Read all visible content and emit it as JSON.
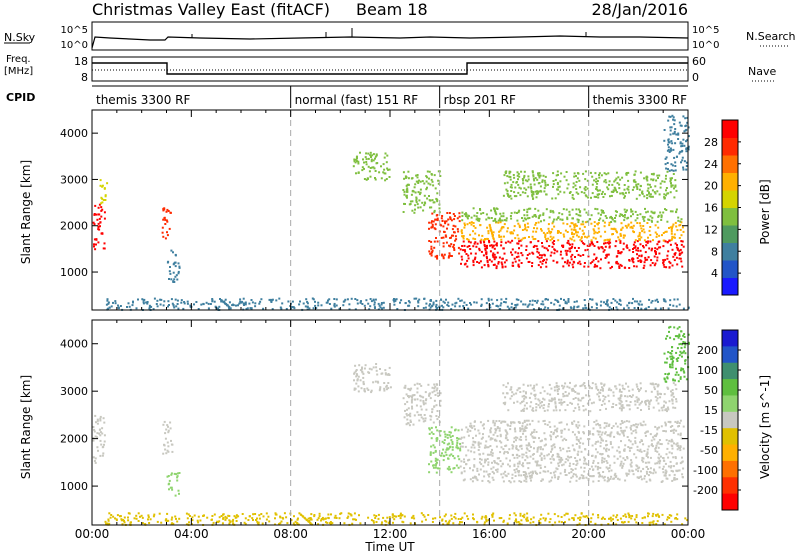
{
  "header": {
    "station": "Christmas Valley East (fitACF)",
    "beam": "Beam 18",
    "date": "28/Jan/2016"
  },
  "panel_labels": {
    "nsky": "N.Sky",
    "nsearch": "N.Search",
    "freq_line1": "Freq.",
    "freq_line2": "[MHz]",
    "nave": "Nave",
    "cpid": "CPID"
  },
  "nsky_left_ticks": [
    "10^5",
    "10^0"
  ],
  "nsky_right_ticks": [
    "10^5",
    "10^0"
  ],
  "freq_left_ticks": [
    "18",
    "8"
  ],
  "freq_right_ticks": [
    "60",
    "0"
  ],
  "cpid_segments": [
    {
      "label": "themis 3300 RF",
      "start": 0.0
    },
    {
      "label": "normal (fast) 151 RF",
      "start": 8.0
    },
    {
      "label": "rbsp 201 RF",
      "start": 14.0
    },
    {
      "label": "themis 3300 RF",
      "start": 20.0
    }
  ],
  "x_ticks": [
    "00:00",
    "04:00",
    "08:00",
    "12:00",
    "16:00",
    "20:00",
    "00:00"
  ],
  "xlabel": "Time UT",
  "ylabel": "Slant Range [km]",
  "y_ticks": [
    "1000",
    "2000",
    "3000",
    "4000"
  ],
  "power_colorbar": {
    "label": "Power [dB]",
    "ticks": [
      "4",
      "8",
      "12",
      "16",
      "20",
      "24",
      "28"
    ],
    "colors": [
      "#1a1aff",
      "#2255c8",
      "#3f7f9f",
      "#4f9a5f",
      "#7fbf3f",
      "#d4d400",
      "#ffb000",
      "#ff7000",
      "#ff2a00",
      "#ff0000"
    ]
  },
  "velocity_colorbar": {
    "label": "Velocity [m s^-1]",
    "ticks": [
      "200",
      "100",
      "50",
      "15",
      "-15",
      "-50",
      "-100",
      "-200"
    ],
    "colors": [
      "#1a1ad0",
      "#2255c8",
      "#3f8f6f",
      "#5fbf3f",
      "#8fd46f",
      "#c8c8c0",
      "#e0c000",
      "#ffb000",
      "#ff7000",
      "#ff3000",
      "#ff0000"
    ]
  },
  "chart_data": {
    "type": "heatmap",
    "x_range_hours": [
      0,
      24
    ],
    "y_range_km": [
      180,
      4500
    ],
    "grid": "dashed vertical lines at 08:00, 14:00 and 20:00",
    "power_regions": [
      {
        "t0": 0.0,
        "t1": 0.5,
        "r0": 1500,
        "r1": 2500,
        "value": 28
      },
      {
        "t0": 0.3,
        "t1": 0.6,
        "r0": 2500,
        "r1": 3100,
        "value": 16
      },
      {
        "t0": 2.8,
        "t1": 3.2,
        "r0": 1700,
        "r1": 2400,
        "value": 24
      },
      {
        "t0": 3.0,
        "t1": 3.5,
        "r0": 800,
        "r1": 1500,
        "value": 8
      },
      {
        "t0": 10.5,
        "t1": 12.0,
        "r0": 3000,
        "r1": 3600,
        "value": 12
      },
      {
        "t0": 12.5,
        "t1": 14.0,
        "r0": 2300,
        "r1": 3200,
        "value": 12
      },
      {
        "t0": 13.5,
        "t1": 14.8,
        "r0": 1300,
        "r1": 2300,
        "value": 24
      },
      {
        "t0": 14.8,
        "t1": 23.8,
        "r0": 1100,
        "r1": 1700,
        "value": 28
      },
      {
        "t0": 14.8,
        "t1": 23.8,
        "r0": 1700,
        "r1": 2100,
        "value": 20
      },
      {
        "t0": 14.8,
        "t1": 23.8,
        "r0": 2100,
        "r1": 2400,
        "value": 12
      },
      {
        "t0": 16.5,
        "t1": 23.5,
        "r0": 2600,
        "r1": 3200,
        "value": 12
      },
      {
        "t0": 23.0,
        "t1": 24.0,
        "r0": 3200,
        "r1": 4400,
        "value": 8
      },
      {
        "t0": 0.5,
        "t1": 24.0,
        "r0": 200,
        "r1": 450,
        "value": 8
      }
    ],
    "velocity_regions": [
      {
        "t0": 0.0,
        "t1": 0.5,
        "r0": 1500,
        "r1": 2500,
        "value": 0
      },
      {
        "t0": 2.8,
        "t1": 3.2,
        "r0": 1700,
        "r1": 2400,
        "value": 0
      },
      {
        "t0": 3.0,
        "t1": 3.5,
        "r0": 800,
        "r1": 1300,
        "value": 30
      },
      {
        "t0": 10.5,
        "t1": 12.0,
        "r0": 3000,
        "r1": 3600,
        "value": 0
      },
      {
        "t0": 12.5,
        "t1": 14.0,
        "r0": 2300,
        "r1": 3200,
        "value": 0
      },
      {
        "t0": 13.5,
        "t1": 14.8,
        "r0": 1300,
        "r1": 2300,
        "value": 40
      },
      {
        "t0": 14.8,
        "t1": 23.8,
        "r0": 1100,
        "r1": 2400,
        "value": 0
      },
      {
        "t0": 16.5,
        "t1": 23.5,
        "r0": 2600,
        "r1": 3200,
        "value": 0
      },
      {
        "t0": 23.0,
        "t1": 24.0,
        "r0": 3200,
        "r1": 4400,
        "value": 80
      },
      {
        "t0": 0.5,
        "t1": 24.0,
        "r0": 200,
        "r1": 450,
        "value": -50
      }
    ]
  }
}
